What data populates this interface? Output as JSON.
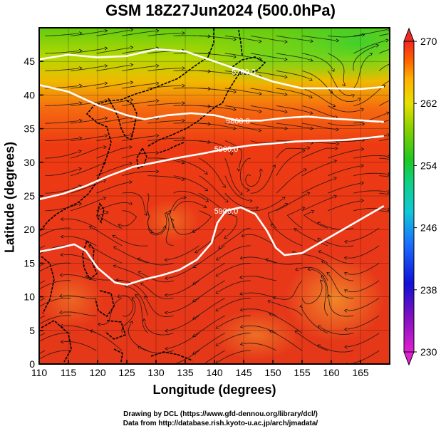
{
  "title": "GSM 18Z27Jun2024 (500.0hPa)",
  "chart_data": {
    "type": "map",
    "title": "GSM 18Z27Jun2024 (500.0hPa)",
    "xlabel": "Longitude (degrees)",
    "ylabel": "Latitude  (degrees)",
    "xlim": [
      110,
      170
    ],
    "ylim": [
      0,
      50
    ],
    "x_ticks": [
      "110",
      "115",
      "120",
      "125",
      "130",
      "135",
      "140",
      "145",
      "150",
      "155",
      "160",
      "165"
    ],
    "y_ticks": [
      "0",
      "5",
      "10",
      "15",
      "20",
      "25",
      "30",
      "35",
      "40",
      "45"
    ],
    "colorbar": {
      "min": 230,
      "max": 270,
      "tick_labels": [
        "270",
        "262",
        "254",
        "246",
        "238",
        "230"
      ]
    },
    "contours": [
      {
        "label": "5700.0",
        "points": [
          [
            110,
            45.3
          ],
          [
            115,
            46.0
          ],
          [
            120,
            45.6
          ],
          [
            125,
            45.8
          ],
          [
            130,
            46.8
          ],
          [
            135,
            46.5
          ],
          [
            140,
            45.0
          ],
          [
            145,
            43.5
          ],
          [
            150,
            42.0
          ],
          [
            155,
            41.0
          ],
          [
            160,
            41.0
          ],
          [
            165,
            40.9
          ],
          [
            169,
            41.2
          ]
        ]
      },
      {
        "label": "5800.0",
        "points": [
          [
            110,
            41.5
          ],
          [
            115,
            40.5
          ],
          [
            120,
            38.5
          ],
          [
            125,
            37.0
          ],
          [
            128,
            36.4
          ],
          [
            132,
            37.0
          ],
          [
            136,
            37.3
          ],
          [
            140,
            37.0
          ],
          [
            144,
            36.2
          ],
          [
            148,
            36.2
          ],
          [
            152,
            36.6
          ],
          [
            156,
            36.8
          ],
          [
            160,
            36.5
          ],
          [
            164,
            36.3
          ],
          [
            169,
            36.0
          ]
        ]
      },
      {
        "label": "5900.0",
        "points": [
          [
            110,
            24.5
          ],
          [
            114,
            25.3
          ],
          [
            118,
            26.5
          ],
          [
            122,
            28.0
          ],
          [
            126,
            29.3
          ],
          [
            130,
            30.0
          ],
          [
            134,
            30.7
          ],
          [
            138,
            31.3
          ],
          [
            142,
            32.0
          ],
          [
            146,
            32.5
          ],
          [
            150,
            32.8
          ],
          [
            154,
            33.1
          ],
          [
            158,
            33.2
          ],
          [
            162,
            33.3
          ],
          [
            166,
            33.6
          ],
          [
            169,
            33.9
          ]
        ]
      },
      {
        "label": "5900.0",
        "points": [
          [
            110,
            16.7
          ],
          [
            113,
            17.2
          ],
          [
            116,
            17.8
          ],
          [
            118,
            16.8
          ],
          [
            120,
            14.3
          ],
          [
            123,
            12.1
          ],
          [
            125,
            11.8
          ],
          [
            128,
            12.6
          ],
          [
            131,
            13.2
          ],
          [
            134,
            14.0
          ],
          [
            137,
            15.5
          ],
          [
            139.5,
            18.0
          ],
          [
            140.5,
            21.0
          ],
          [
            142,
            22.8
          ],
          [
            144.5,
            23.3
          ],
          [
            147,
            22.3
          ],
          [
            149,
            19.8
          ],
          [
            150.5,
            17.3
          ],
          [
            152,
            16.2
          ],
          [
            155,
            16.5
          ],
          [
            158,
            18.0
          ],
          [
            162,
            20.0
          ],
          [
            165,
            21.5
          ],
          [
            169,
            23.5
          ]
        ]
      }
    ]
  }
}
